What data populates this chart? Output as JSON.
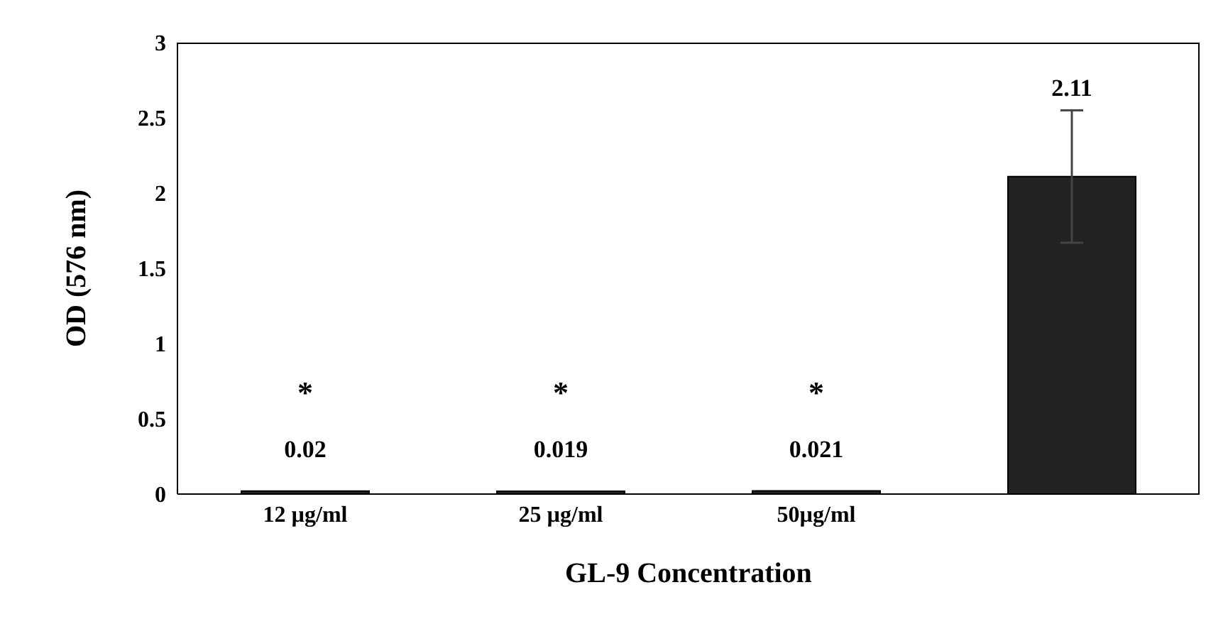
{
  "chart_data": {
    "type": "bar",
    "xlabel": "GL-9 Concentration",
    "ylabel": "OD (576 nm)",
    "categories": [
      "12 µg/ml",
      "25 µg/ml",
      "50µg/ml",
      null
    ],
    "values": [
      0.02,
      0.019,
      0.021,
      2.11
    ],
    "errors": [
      null,
      null,
      null,
      0.44
    ],
    "color": "#222222",
    "data_labels": true,
    "ylim": [
      0,
      3
    ],
    "yticks": [
      0,
      0.5,
      1,
      1.5,
      2,
      2.5,
      3
    ],
    "grid": false,
    "legend": false,
    "annotations": [
      "*",
      "*",
      "*"
    ]
  }
}
